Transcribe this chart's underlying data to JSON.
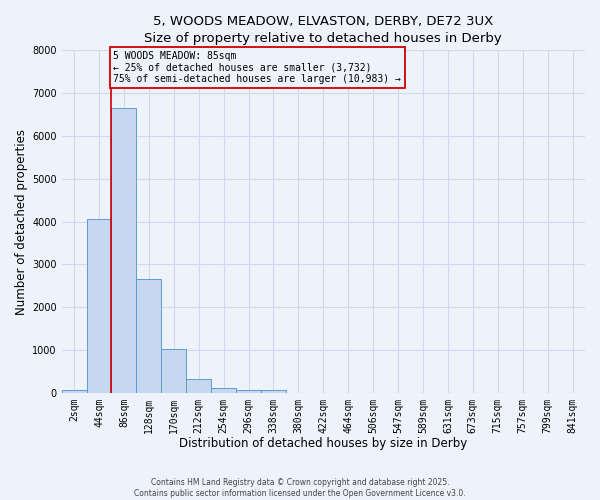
{
  "title_line1": "5, WOODS MEADOW, ELVASTON, DERBY, DE72 3UX",
  "title_line2": "Size of property relative to detached houses in Derby",
  "xlabel": "Distribution of detached houses by size in Derby",
  "ylabel": "Number of detached properties",
  "bar_labels": [
    "2sqm",
    "44sqm",
    "86sqm",
    "128sqm",
    "170sqm",
    "212sqm",
    "254sqm",
    "296sqm",
    "338sqm",
    "380sqm",
    "422sqm",
    "464sqm",
    "506sqm",
    "547sqm",
    "589sqm",
    "631sqm",
    "673sqm",
    "715sqm",
    "757sqm",
    "799sqm",
    "841sqm"
  ],
  "bar_values": [
    75,
    4050,
    6650,
    2650,
    1020,
    330,
    110,
    75,
    75,
    0,
    0,
    0,
    0,
    0,
    0,
    0,
    0,
    0,
    0,
    0,
    0
  ],
  "bar_color": "#c5d8f0",
  "bar_edge_color": "#5b9bd5",
  "ylim": [
    0,
    8000
  ],
  "yticks": [
    0,
    1000,
    2000,
    3000,
    4000,
    5000,
    6000,
    7000,
    8000
  ],
  "property_line_bar_index": 2,
  "property_line_color": "#cc0000",
  "annotation_text": "5 WOODS MEADOW: 85sqm\n← 25% of detached houses are smaller (3,732)\n75% of semi-detached houses are larger (10,983) →",
  "annotation_box_color": "#cc0000",
  "footer_line1": "Contains HM Land Registry data © Crown copyright and database right 2025.",
  "footer_line2": "Contains public sector information licensed under the Open Government Licence v3.0.",
  "background_color": "#eef2fa",
  "grid_color": "#d0d8ee",
  "title_fontsize": 9.5,
  "xlabel_fontsize": 8.5,
  "ylabel_fontsize": 8.5,
  "tick_fontsize": 7
}
